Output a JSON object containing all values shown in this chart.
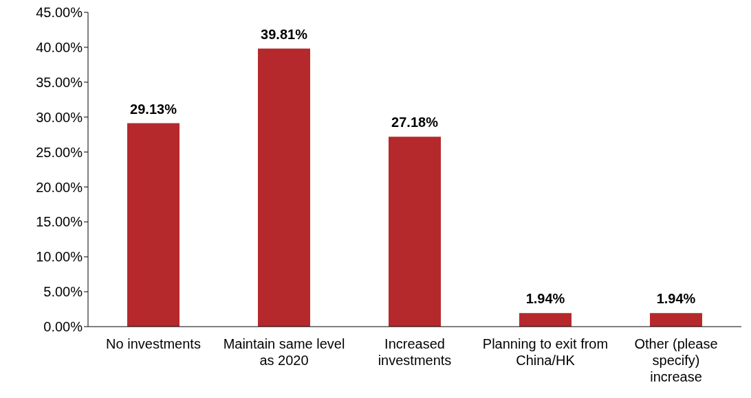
{
  "chart_data": {
    "type": "bar",
    "categories": [
      "No investments",
      "Maintain same level as 2020",
      "Increased investments",
      "Planning to exit from China/HK",
      "Other (please specify) increase"
    ],
    "values": [
      29.13,
      39.81,
      27.18,
      1.94,
      1.94
    ],
    "color": "#b5292d",
    "ylim": [
      0,
      45
    ],
    "yticks": [
      {
        "value": 0,
        "label": "0.00%"
      },
      {
        "value": 5,
        "label": "5.00%"
      },
      {
        "value": 10,
        "label": "10.00%"
      },
      {
        "value": 15,
        "label": "15.00%"
      },
      {
        "value": 20,
        "label": "20.00%"
      },
      {
        "value": 25,
        "label": "25.00%"
      },
      {
        "value": 30,
        "label": "30.00%"
      },
      {
        "value": 35,
        "label": "35.00%"
      },
      {
        "value": 40,
        "label": "40.00%"
      },
      {
        "value": 45,
        "label": "45.00%"
      }
    ],
    "value_labels": [
      "29.13%",
      "39.81%",
      "27.18%",
      "1.94%",
      "1.94%"
    ],
    "grid": false,
    "legend": false
  }
}
